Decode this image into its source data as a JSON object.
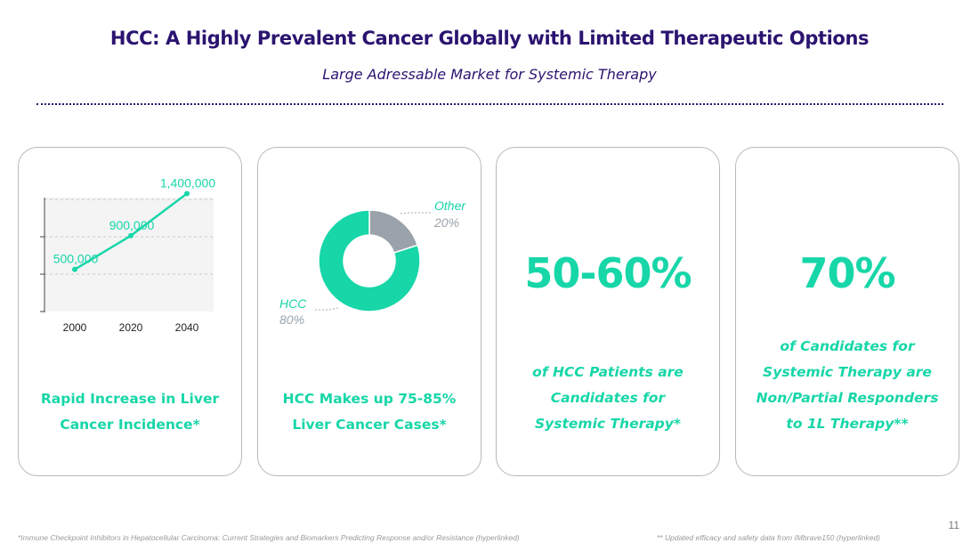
{
  "header": {
    "title": "HCC: A Highly Prevalent Cancer Globally with Limited Therapeutic Options",
    "subtitle": "Large Adressable Market for Systemic Therapy"
  },
  "cards": [
    {
      "caption_lines": [
        "Rapid Increase in Liver",
        "Cancer Incidence*"
      ]
    },
    {
      "caption_lines": [
        "HCC Makes up 75-85%",
        "Liver Cancer Cases*"
      ]
    },
    {
      "stat": "50-60%",
      "caption_lines": [
        "of HCC Patients are",
        "Candidates for",
        "Systemic Therapy*"
      ]
    },
    {
      "stat": "70%",
      "caption_lines": [
        "of Candidates for",
        "Systemic Therapy are",
        "Non/Partial Responders",
        "to 1L Therapy**"
      ]
    }
  ],
  "chart_data": [
    {
      "type": "line",
      "title": "",
      "categories": [
        "2000",
        "2020",
        "2040"
      ],
      "values": [
        500000,
        900000,
        1400000
      ],
      "data_labels": [
        "500,000",
        "900,000",
        "1,400,000"
      ],
      "ylim": [
        0,
        1500000
      ],
      "grid": true,
      "color": "#17d6a8"
    },
    {
      "type": "pie",
      "variant": "donut",
      "labels": [
        "Other",
        "HCC"
      ],
      "values": [
        20,
        80
      ],
      "value_labels": [
        "20%",
        "80%"
      ],
      "colors": [
        "#9aa3ab",
        "#17d6a8"
      ]
    }
  ],
  "footnotes": {
    "left": "*Immune Checkpoint Inhibitors in Hepatocellular Carcinoma: Current Strategies and Biomarkers Predicting Response and/or Resistance  (hyperlinked)",
    "right": "** Updated efficacy and safety data from IMbrave150  (hyperlinked)"
  },
  "page_number": "11",
  "colors": {
    "accent": "#17d6a8",
    "title": "#2b1470",
    "muted": "#9aa3ab"
  }
}
